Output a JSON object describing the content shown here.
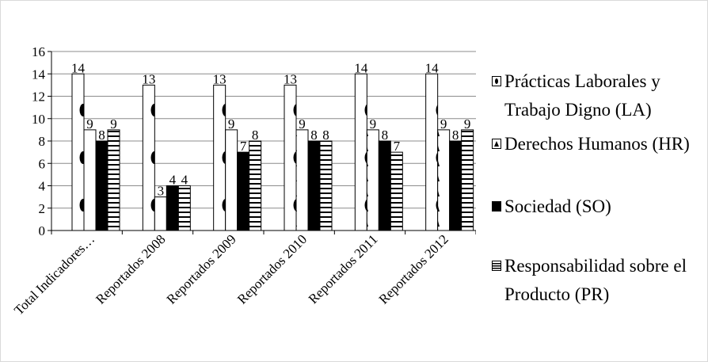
{
  "chart_data": {
    "type": "bar",
    "categories": [
      "Total Indicadores…",
      "Reportados 2008",
      "Reportados 2009",
      "Reportados 2010",
      "Reportados 2011",
      "Reportados 2012"
    ],
    "series": [
      {
        "name": "Prácticas Laborales y Trabajo Digno (LA)",
        "values": [
          14,
          13,
          13,
          13,
          14,
          14
        ],
        "pattern": "ovals"
      },
      {
        "name": "Derechos Humanos (HR)",
        "values": [
          9,
          3,
          9,
          9,
          9,
          9
        ],
        "pattern": "triangles"
      },
      {
        "name": "Sociedad (SO)",
        "values": [
          8,
          4,
          7,
          8,
          8,
          8
        ],
        "pattern": "solid"
      },
      {
        "name": "Responsabilidad sobre el Producto (PR)",
        "values": [
          9,
          4,
          8,
          8,
          7,
          9
        ],
        "pattern": "horizontal-lines"
      }
    ],
    "ylim": [
      0,
      16
    ],
    "yticks": [
      0,
      2,
      4,
      6,
      8,
      10,
      12,
      14,
      16
    ],
    "grid": true,
    "legend_position": "right",
    "colors": {
      "ink": "#000000",
      "grid": "#8c8c8c",
      "background": "#ffffff"
    }
  }
}
